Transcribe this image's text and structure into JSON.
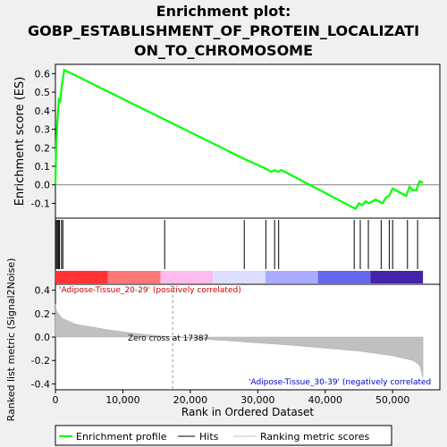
{
  "chart_data": {
    "type": "line",
    "title": "Enrichment plot:\nGOBP_ESTABLISHMENT_OF_PROTEIN_LOCALIZATI\nON_TO_CHROMOSOME",
    "title_lines": [
      "Enrichment plot:",
      "GOBP_ESTABLISHMENT_OF_PROTEIN_LOCALIZATI",
      "ON_TO_CHROMOSOME"
    ],
    "es_panel": {
      "ylabel": "Enrichment score (ES)",
      "ylim": [
        -0.18,
        0.65
      ],
      "yticks": [
        -0.1,
        0.0,
        0.1,
        0.2,
        0.3,
        0.4,
        0.5,
        0.6
      ],
      "ytick_labels": [
        "-0.1",
        "0.0",
        "0.1",
        "0.2",
        "0.3",
        "0.4",
        "0.5",
        "0.6"
      ],
      "series": [
        {
          "name": "Enrichment profile",
          "color": "#00ff00",
          "x": [
            0,
            100,
            250,
            400,
            500,
            700,
            850,
            1000,
            1150,
            1300,
            28000,
            31000,
            32000,
            32500,
            33000,
            33500,
            44500,
            45000,
            45500,
            46000,
            46500,
            47500,
            48500,
            49000,
            49500,
            50000,
            51000,
            52000,
            52500,
            53000,
            53500,
            54000,
            54500
          ],
          "y": [
            0.0,
            0.2,
            0.32,
            0.4,
            0.46,
            0.45,
            0.5,
            0.55,
            0.58,
            0.62,
            0.14,
            0.09,
            0.07,
            0.08,
            0.07,
            0.08,
            -0.13,
            -0.1,
            -0.11,
            -0.09,
            -0.1,
            -0.08,
            -0.1,
            -0.07,
            -0.06,
            -0.02,
            -0.04,
            -0.06,
            -0.01,
            -0.03,
            -0.03,
            0.02,
            0.01
          ]
        }
      ]
    },
    "hits": {
      "name": "Hits",
      "positions": [
        150,
        300,
        450,
        600,
        900,
        1100,
        16200,
        28000,
        31200,
        32500,
        33100,
        44300,
        45200,
        46400,
        48300,
        49500,
        50000,
        52200,
        53700
      ]
    },
    "ranking_colors": [
      "#ff3333",
      "#ff7777",
      "#ffbbee",
      "#ddddff",
      "#aaaaff",
      "#6666ee",
      "#4422aa"
    ],
    "ranking_panel": {
      "ylabel": "Ranked list metric (Signal2Noise)",
      "ylim": [
        -0.45,
        0.45
      ],
      "yticks": [
        -0.4,
        -0.2,
        0.0,
        0.2,
        0.4
      ],
      "ytick_labels": [
        "-0.4",
        "-0.2",
        "0.0",
        "0.2",
        "0.4"
      ],
      "x": [
        0,
        200,
        1000,
        3000,
        8000,
        12000,
        17387,
        25000,
        35000,
        45000,
        50000,
        53000,
        54000,
        54500
      ],
      "y": [
        0.28,
        0.22,
        0.16,
        0.11,
        0.06,
        0.03,
        0.0,
        -0.03,
        -0.07,
        -0.12,
        -0.16,
        -0.2,
        -0.24,
        -0.35
      ],
      "zero_cross_label": "Zero cross at 17387",
      "zero_cross": 17387,
      "positive_label": "'Adipose-Tissue_20-29' (positively correlated)",
      "negative_label": "'Adipose-Tissue_30-39' (negatively correlated"
    },
    "x_axis": {
      "xlabel": "Rank in Ordered Dataset",
      "xlim": [
        0,
        57000
      ],
      "xticks": [
        0,
        10000,
        20000,
        30000,
        40000,
        50000
      ],
      "xtick_labels": [
        "0",
        "10,000",
        "20,000",
        "30,000",
        "40,000",
        "50,000"
      ]
    },
    "legend": [
      {
        "label": "Enrichment profile",
        "color": "#00ff00"
      },
      {
        "label": "Hits",
        "color": "#000000"
      },
      {
        "label": "Ranking metric scores",
        "color": "#c0c0c0"
      }
    ]
  }
}
